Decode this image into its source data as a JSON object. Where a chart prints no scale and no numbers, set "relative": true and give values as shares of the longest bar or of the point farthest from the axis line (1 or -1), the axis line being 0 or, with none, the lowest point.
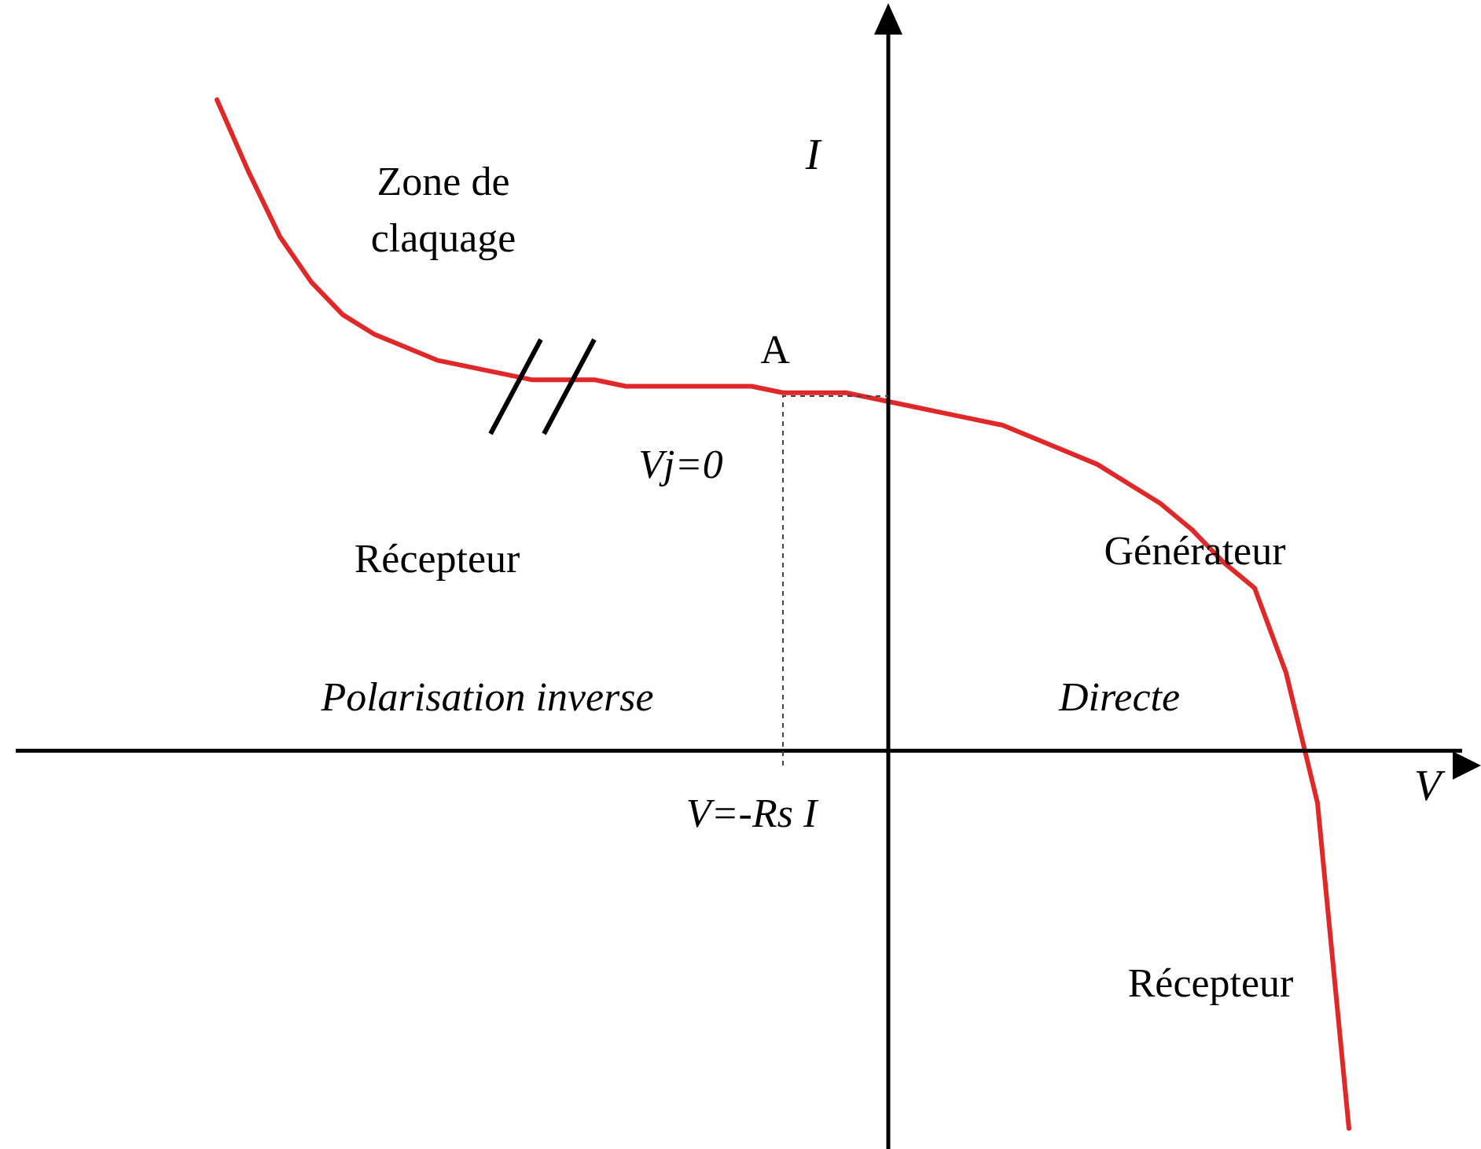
{
  "chart_data": {
    "type": "line",
    "relative": true,
    "xlabel": "V",
    "ylabel": "I",
    "legend": false,
    "marker": "none",
    "line_style": "solid",
    "categories": [
      null,
      null,
      null,
      null,
      null,
      null,
      null,
      null,
      null,
      null,
      null,
      null,
      null,
      null,
      null,
      null,
      null,
      null,
      null,
      null,
      null,
      null,
      null,
      null,
      null,
      null,
      null,
      null,
      null,
      null,
      null,
      null,
      null,
      null,
      null,
      null,
      null
    ],
    "series": [
      {
        "color": "#e02828",
        "values": [
          1.0,
          0.89,
          0.79,
          0.72,
          0.67,
          0.64,
          0.62,
          0.6,
          0.59,
          0.58,
          0.57,
          0.57,
          0.57,
          0.56,
          0.56,
          0.56,
          0.56,
          0.56,
          0.55,
          0.55,
          0.55,
          0.54,
          0.53,
          0.52,
          0.51,
          0.5,
          0.48,
          0.46,
          0.44,
          0.41,
          0.38,
          0.34,
          0.29,
          0.25,
          0.12,
          -0.08,
          -0.58
        ]
      }
    ],
    "annotations": [
      "Zone de claquage",
      "A",
      "Vj=0",
      "Récepteur",
      "Polarisation inverse",
      "Directe",
      "Générateur",
      "Récepteur",
      "V=-Rs I"
    ]
  }
}
